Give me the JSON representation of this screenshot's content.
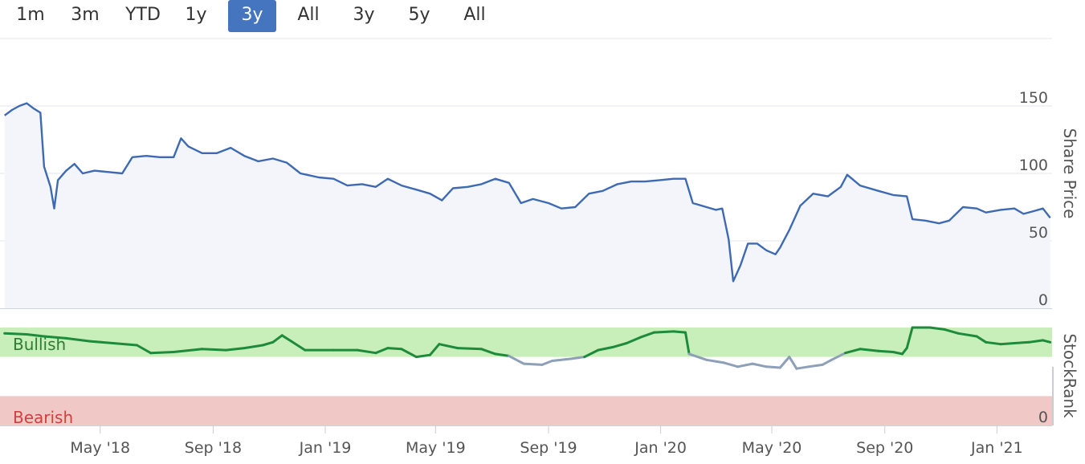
{
  "range_selector": {
    "buttons": [
      "1m",
      "3m",
      "YTD",
      "1y",
      "3y",
      "All",
      "3y",
      "5y",
      "All"
    ],
    "active_index": 4,
    "active_color": "#4675c0"
  },
  "chart_data": [
    {
      "type": "area",
      "ylabel": "Share Price",
      "ylim": [
        0,
        200
      ],
      "yticks": [
        0,
        50,
        100,
        150
      ],
      "grid": true,
      "color": "#3e6ab4",
      "fill": "#f3f5fa",
      "series": [
        {
          "points": [
            [
              "2018-01-17",
              143
            ],
            [
              "2018-01-25",
              147
            ],
            [
              "2018-02-02",
              150
            ],
            [
              "2018-02-10",
              152
            ],
            [
              "2018-02-18",
              148
            ],
            [
              "2018-02-25",
              145
            ],
            [
              "2018-03-01",
              105
            ],
            [
              "2018-03-08",
              90
            ],
            [
              "2018-03-12",
              74
            ],
            [
              "2018-03-16",
              95
            ],
            [
              "2018-03-25",
              102
            ],
            [
              "2018-04-03",
              107
            ],
            [
              "2018-04-12",
              100
            ],
            [
              "2018-04-25",
              102
            ],
            [
              "2018-05-10",
              101
            ],
            [
              "2018-05-25",
              100
            ],
            [
              "2018-06-05",
              112
            ],
            [
              "2018-06-20",
              113
            ],
            [
              "2018-07-05",
              112
            ],
            [
              "2018-07-20",
              112
            ],
            [
              "2018-07-28",
              126
            ],
            [
              "2018-08-05",
              120
            ],
            [
              "2018-08-20",
              115
            ],
            [
              "2018-09-05",
              115
            ],
            [
              "2018-09-20",
              119
            ],
            [
              "2018-10-05",
              113
            ],
            [
              "2018-10-20",
              109
            ],
            [
              "2018-11-05",
              111
            ],
            [
              "2018-11-20",
              108
            ],
            [
              "2018-12-05",
              100
            ],
            [
              "2018-12-25",
              97
            ],
            [
              "2019-01-10",
              96
            ],
            [
              "2019-01-25",
              91
            ],
            [
              "2019-02-10",
              92
            ],
            [
              "2019-02-25",
              90
            ],
            [
              "2019-03-10",
              96
            ],
            [
              "2019-03-25",
              91
            ],
            [
              "2019-04-10",
              88
            ],
            [
              "2019-04-25",
              85
            ],
            [
              "2019-05-08",
              80
            ],
            [
              "2019-05-20",
              89
            ],
            [
              "2019-06-05",
              90
            ],
            [
              "2019-06-20",
              92
            ],
            [
              "2019-07-05",
              96
            ],
            [
              "2019-07-20",
              93
            ],
            [
              "2019-08-02",
              78
            ],
            [
              "2019-08-15",
              81
            ],
            [
              "2019-09-01",
              78
            ],
            [
              "2019-09-15",
              74
            ],
            [
              "2019-09-30",
              75
            ],
            [
              "2019-10-15",
              85
            ],
            [
              "2019-10-30",
              87
            ],
            [
              "2019-11-15",
              92
            ],
            [
              "2019-11-30",
              94
            ],
            [
              "2019-12-15",
              94
            ],
            [
              "2019-12-31",
              95
            ],
            [
              "2020-01-15",
              96
            ],
            [
              "2020-01-28",
              96
            ],
            [
              "2020-02-05",
              78
            ],
            [
              "2020-02-20",
              75
            ],
            [
              "2020-03-01",
              73
            ],
            [
              "2020-03-08",
              74
            ],
            [
              "2020-03-15",
              51
            ],
            [
              "2020-03-20",
              20
            ],
            [
              "2020-03-28",
              32
            ],
            [
              "2020-04-05",
              48
            ],
            [
              "2020-04-15",
              48
            ],
            [
              "2020-04-25",
              43
            ],
            [
              "2020-05-05",
              40
            ],
            [
              "2020-05-10",
              45
            ],
            [
              "2020-05-20",
              58
            ],
            [
              "2020-06-01",
              76
            ],
            [
              "2020-06-15",
              85
            ],
            [
              "2020-07-01",
              83
            ],
            [
              "2020-07-15",
              90
            ],
            [
              "2020-07-22",
              99
            ],
            [
              "2020-08-05",
              91
            ],
            [
              "2020-08-25",
              87
            ],
            [
              "2020-09-10",
              84
            ],
            [
              "2020-09-25",
              83
            ],
            [
              "2020-10-01",
              66
            ],
            [
              "2020-10-15",
              65
            ],
            [
              "2020-10-30",
              63
            ],
            [
              "2020-11-10",
              65
            ],
            [
              "2020-11-25",
              75
            ],
            [
              "2020-12-10",
              74
            ],
            [
              "2020-12-20",
              71
            ],
            [
              "2021-01-05",
              73
            ],
            [
              "2021-01-20",
              74
            ],
            [
              "2021-01-30",
              70
            ],
            [
              "2021-02-10",
              72
            ],
            [
              "2021-02-20",
              74
            ],
            [
              "2021-02-28",
              67
            ]
          ]
        }
      ]
    },
    {
      "type": "line",
      "ylabel": "StockRank",
      "ylim": [
        0,
        100
      ],
      "yticks": [
        0
      ],
      "zones": [
        {
          "label": "Bullish",
          "from": 70,
          "to": 100,
          "fill": "#c8efb9",
          "text_color": "#2e7d32"
        },
        {
          "label": "Bearish",
          "from": 0,
          "to": 30,
          "fill": "#f0c8c6",
          "text_color": "#d04040"
        }
      ],
      "colors": {
        "bullish": "#1e8a3c",
        "neutral": "#8e9fb8"
      },
      "series": [
        {
          "points": [
            [
              "2018-01-17",
              94
            ],
            [
              "2018-02-10",
              93
            ],
            [
              "2018-03-01",
              91
            ],
            [
              "2018-03-25",
              89
            ],
            [
              "2018-04-20",
              86
            ],
            [
              "2018-05-15",
              84
            ],
            [
              "2018-06-10",
              82
            ],
            [
              "2018-06-25",
              74
            ],
            [
              "2018-07-20",
              75
            ],
            [
              "2018-08-20",
              78
            ],
            [
              "2018-09-15",
              77
            ],
            [
              "2018-10-05",
              79
            ],
            [
              "2018-10-25",
              82
            ],
            [
              "2018-11-05",
              85
            ],
            [
              "2018-11-15",
              92
            ],
            [
              "2018-11-25",
              86
            ],
            [
              "2018-12-10",
              77
            ],
            [
              "2019-01-10",
              77
            ],
            [
              "2019-02-05",
              77
            ],
            [
              "2019-02-25",
              74
            ],
            [
              "2019-03-10",
              79
            ],
            [
              "2019-03-25",
              78
            ],
            [
              "2019-04-10",
              70
            ],
            [
              "2019-04-25",
              72
            ],
            [
              "2019-05-05",
              83
            ],
            [
              "2019-05-25",
              79
            ],
            [
              "2019-06-20",
              78
            ],
            [
              "2019-07-05",
              73
            ],
            [
              "2019-07-20",
              71
            ],
            [
              "2019-08-05",
              63
            ],
            [
              "2019-08-25",
              62
            ],
            [
              "2019-09-05",
              66
            ],
            [
              "2019-09-25",
              68
            ],
            [
              "2019-10-10",
              70
            ],
            [
              "2019-10-25",
              77
            ],
            [
              "2019-11-10",
              80
            ],
            [
              "2019-11-25",
              84
            ],
            [
              "2019-12-10",
              90
            ],
            [
              "2019-12-25",
              95
            ],
            [
              "2020-01-15",
              96
            ],
            [
              "2020-01-28",
              95
            ],
            [
              "2020-02-01",
              73
            ],
            [
              "2020-02-20",
              67
            ],
            [
              "2020-03-10",
              64
            ],
            [
              "2020-03-25",
              60
            ],
            [
              "2020-04-10",
              63
            ],
            [
              "2020-04-25",
              60
            ],
            [
              "2020-05-10",
              59
            ],
            [
              "2020-05-20",
              70
            ],
            [
              "2020-05-28",
              58
            ],
            [
              "2020-06-10",
              60
            ],
            [
              "2020-06-25",
              62
            ],
            [
              "2020-07-05",
              67
            ],
            [
              "2020-07-20",
              74
            ],
            [
              "2020-08-05",
              78
            ],
            [
              "2020-08-25",
              76
            ],
            [
              "2020-09-10",
              75
            ],
            [
              "2020-09-20",
              73
            ],
            [
              "2020-09-25",
              79
            ],
            [
              "2020-10-01",
              100
            ],
            [
              "2020-10-20",
              100
            ],
            [
              "2020-11-05",
              98
            ],
            [
              "2020-11-20",
              94
            ],
            [
              "2020-12-10",
              91
            ],
            [
              "2020-12-20",
              85
            ],
            [
              "2021-01-05",
              83
            ],
            [
              "2021-01-20",
              84
            ],
            [
              "2021-02-05",
              85
            ],
            [
              "2021-02-20",
              87
            ],
            [
              "2021-02-28",
              85
            ]
          ]
        }
      ]
    }
  ],
  "x_axis": {
    "range": [
      "2018-01-12",
      "2021-03-02"
    ],
    "ticks": [
      {
        "date": "2018-05-01",
        "label": "May '18"
      },
      {
        "date": "2018-09-01",
        "label": "Sep '18"
      },
      {
        "date": "2019-01-01",
        "label": "Jan '19"
      },
      {
        "date": "2019-05-01",
        "label": "May '19"
      },
      {
        "date": "2019-09-01",
        "label": "Sep '19"
      },
      {
        "date": "2020-01-01",
        "label": "Jan '20"
      },
      {
        "date": "2020-05-01",
        "label": "May '20"
      },
      {
        "date": "2020-09-01",
        "label": "Sep '20"
      },
      {
        "date": "2021-01-01",
        "label": "Jan '21"
      }
    ]
  }
}
